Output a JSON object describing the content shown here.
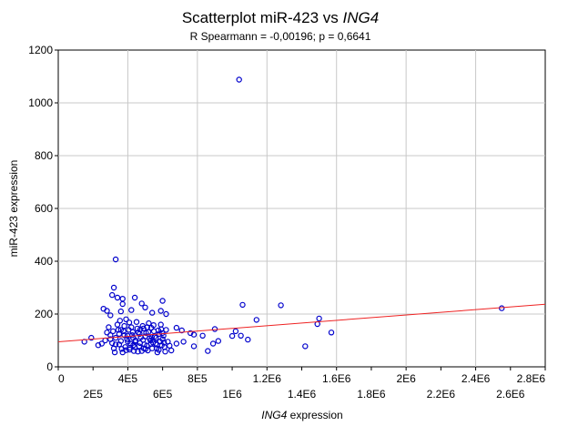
{
  "chart_data": {
    "type": "scatter",
    "title_prefix": "Scatterplot miR-423 vs ",
    "title_gene": "ING4",
    "subtitle": "R Spearmann = -0,00196; p = 0,6641",
    "xlabel_gene": "ING4",
    "xlabel_suffix": " expression",
    "ylabel": "miR-423 expression",
    "xlim": [
      0,
      2800000
    ],
    "ylim": [
      0,
      1200
    ],
    "x_ticks_upper": [
      {
        "value": 0,
        "label": "0"
      },
      {
        "value": 400000,
        "label": "4E5"
      },
      {
        "value": 800000,
        "label": "8E5"
      },
      {
        "value": 1200000,
        "label": "1.2E6"
      },
      {
        "value": 1600000,
        "label": "1.6E6"
      },
      {
        "value": 2000000,
        "label": "2E6"
      },
      {
        "value": 2400000,
        "label": "2.4E6"
      },
      {
        "value": 2800000,
        "label": "2.8E6"
      }
    ],
    "x_ticks_lower": [
      {
        "value": 200000,
        "label": "2E5"
      },
      {
        "value": 600000,
        "label": "6E5"
      },
      {
        "value": 1000000,
        "label": "1E6"
      },
      {
        "value": 1400000,
        "label": "1.4E6"
      },
      {
        "value": 1800000,
        "label": "1.8E6"
      },
      {
        "value": 2200000,
        "label": "2.2E6"
      },
      {
        "value": 2600000,
        "label": "2.6E6"
      }
    ],
    "y_ticks": [
      0,
      200,
      400,
      600,
      800,
      1000,
      1200
    ],
    "grid": true,
    "marker_color": "#0000cc",
    "fit_color": "#ee2222",
    "regression": {
      "x": [
        0,
        2800000
      ],
      "y": [
        95,
        237
      ]
    },
    "series": [
      {
        "points": [
          [
            1040000,
            1088
          ],
          [
            330000,
            407
          ],
          [
            320000,
            300
          ],
          [
            310000,
            272
          ],
          [
            340000,
            262
          ],
          [
            370000,
            258
          ],
          [
            440000,
            262
          ],
          [
            600000,
            250
          ],
          [
            370000,
            238
          ],
          [
            480000,
            240
          ],
          [
            1060000,
            235
          ],
          [
            1280000,
            233
          ],
          [
            260000,
            220
          ],
          [
            280000,
            212
          ],
          [
            300000,
            195
          ],
          [
            360000,
            210
          ],
          [
            420000,
            215
          ],
          [
            500000,
            225
          ],
          [
            540000,
            205
          ],
          [
            590000,
            212
          ],
          [
            620000,
            200
          ],
          [
            1140000,
            178
          ],
          [
            1500000,
            183
          ],
          [
            1490000,
            162
          ],
          [
            1570000,
            130
          ],
          [
            2550000,
            222
          ],
          [
            680000,
            148
          ],
          [
            710000,
            138
          ],
          [
            760000,
            128
          ],
          [
            780000,
            122
          ],
          [
            830000,
            118
          ],
          [
            900000,
            143
          ],
          [
            1020000,
            135
          ],
          [
            1050000,
            118
          ],
          [
            1000000,
            117
          ],
          [
            1090000,
            103
          ],
          [
            920000,
            98
          ],
          [
            890000,
            88
          ],
          [
            860000,
            60
          ],
          [
            1420000,
            78
          ],
          [
            780000,
            78
          ],
          [
            720000,
            95
          ],
          [
            680000,
            88
          ],
          [
            650000,
            62
          ],
          [
            640000,
            80
          ],
          [
            150000,
            95
          ],
          [
            190000,
            110
          ],
          [
            230000,
            82
          ],
          [
            250000,
            88
          ],
          [
            270000,
            100
          ],
          [
            280000,
            130
          ],
          [
            290000,
            150
          ],
          [
            300000,
            120
          ],
          [
            310000,
            90
          ],
          [
            320000,
            70
          ],
          [
            330000,
            110
          ],
          [
            340000,
            160
          ],
          [
            350000,
            85
          ],
          [
            360000,
            140
          ],
          [
            370000,
            55
          ],
          [
            380000,
            120
          ],
          [
            390000,
            180
          ],
          [
            400000,
            95
          ],
          [
            410000,
            65
          ],
          [
            420000,
            150
          ],
          [
            430000,
            110
          ],
          [
            440000,
            75
          ],
          [
            450000,
            170
          ],
          [
            460000,
            130
          ],
          [
            470000,
            90
          ],
          [
            480000,
            60
          ],
          [
            490000,
            145
          ],
          [
            500000,
            115
          ],
          [
            510000,
            80
          ],
          [
            520000,
            165
          ],
          [
            530000,
            100
          ],
          [
            540000,
            70
          ],
          [
            550000,
            135
          ],
          [
            560000,
            88
          ],
          [
            570000,
            55
          ],
          [
            580000,
            125
          ],
          [
            590000,
            160
          ],
          [
            600000,
            105
          ],
          [
            610000,
            75
          ],
          [
            620000,
            140
          ],
          [
            630000,
            95
          ],
          [
            350000,
            125
          ],
          [
            360000,
            98
          ],
          [
            375000,
            135
          ],
          [
            385000,
            75
          ],
          [
            395000,
            105
          ],
          [
            405000,
            140
          ],
          [
            415000,
            88
          ],
          [
            425000,
            120
          ],
          [
            435000,
            60
          ],
          [
            445000,
            100
          ],
          [
            455000,
            145
          ],
          [
            465000,
            78
          ],
          [
            475000,
            112
          ],
          [
            485000,
            155
          ],
          [
            495000,
            85
          ],
          [
            505000,
            128
          ],
          [
            515000,
            62
          ],
          [
            525000,
            108
          ],
          [
            535000,
            148
          ],
          [
            545000,
            92
          ],
          [
            555000,
            115
          ],
          [
            565000,
            70
          ],
          [
            575000,
            138
          ],
          [
            585000,
            96
          ],
          [
            595000,
            82
          ],
          [
            605000,
            118
          ],
          [
            615000,
            58
          ],
          [
            330000,
            85
          ],
          [
            345000,
            140
          ],
          [
            365000,
            68
          ],
          [
            380000,
            155
          ],
          [
            398000,
            118
          ],
          [
            412000,
            72
          ],
          [
            428000,
            132
          ],
          [
            442000,
            95
          ],
          [
            458000,
            58
          ],
          [
            472000,
            142
          ],
          [
            488000,
            102
          ],
          [
            502000,
            68
          ],
          [
            518000,
            132
          ],
          [
            532000,
            88
          ],
          [
            548000,
            158
          ],
          [
            562000,
            110
          ],
          [
            578000,
            64
          ],
          [
            592000,
            142
          ],
          [
            608000,
            92
          ],
          [
            300000,
            105
          ],
          [
            315000,
            135
          ],
          [
            325000,
            55
          ],
          [
            355000,
            175
          ],
          [
            390000,
            63
          ],
          [
            408000,
            168
          ],
          [
            432000,
            82
          ],
          [
            468000,
            125
          ],
          [
            492000,
            70
          ],
          [
            512000,
            150
          ],
          [
            538000,
            112
          ],
          [
            568000,
            84
          ],
          [
            598000,
            128
          ]
        ]
      }
    ]
  }
}
